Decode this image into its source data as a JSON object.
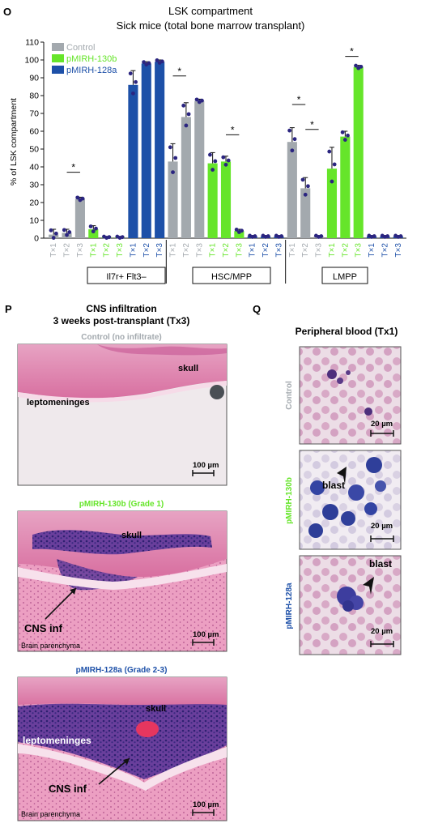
{
  "panel_o": {
    "letter": "O",
    "title_line1": "LSK compartment",
    "title_line2": "Sick mice (total bone marrow transplant)",
    "ylabel": "% of LSK compartment",
    "legend": [
      {
        "label": "Control",
        "color": "#a3a9ae"
      },
      {
        "label": "pMIRH-130b",
        "color": "#66e52a"
      },
      {
        "label": "pMIRH-128a",
        "color": "#1d50a8"
      }
    ],
    "groups": [
      "Il7r+ Flt3–",
      "HSC/MPP",
      "LMPP"
    ]
  },
  "chart_data": {
    "type": "bar",
    "ylabel": "% of LSK compartment",
    "ylim": [
      0,
      110
    ],
    "yticks": [
      0,
      10,
      20,
      30,
      40,
      50,
      60,
      70,
      80,
      90,
      100,
      110
    ],
    "categories": [
      "Tx1",
      "Tx2",
      "Tx3",
      "Tx1",
      "Tx2",
      "Tx3",
      "Tx1",
      "Tx2",
      "Tx3",
      "Tx1",
      "Tx2",
      "Tx3",
      "Tx1",
      "Tx2",
      "Tx3",
      "Tx1",
      "Tx2",
      "Tx3",
      "Tx1",
      "Tx2",
      "Tx3",
      "Tx1",
      "Tx2",
      "Tx3",
      "Tx1",
      "Tx2",
      "Tx3"
    ],
    "colors": [
      "#a3a9ae",
      "#a3a9ae",
      "#a3a9ae",
      "#66e52a",
      "#66e52a",
      "#66e52a",
      "#1d50a8",
      "#1d50a8",
      "#1d50a8",
      "#a3a9ae",
      "#a3a9ae",
      "#a3a9ae",
      "#66e52a",
      "#66e52a",
      "#66e52a",
      "#1d50a8",
      "#1d50a8",
      "#1d50a8",
      "#a3a9ae",
      "#a3a9ae",
      "#a3a9ae",
      "#66e52a",
      "#66e52a",
      "#66e52a",
      "#1d50a8",
      "#1d50a8",
      "#1d50a8"
    ],
    "values": [
      2,
      3,
      22,
      5,
      0.5,
      0.5,
      86,
      98,
      99,
      43,
      68,
      77,
      42,
      43,
      4,
      1,
      1,
      1,
      54,
      28,
      1,
      39,
      57,
      96,
      1,
      1,
      1
    ],
    "errors": [
      3,
      2,
      1,
      2,
      0.5,
      0.5,
      8,
      1,
      1,
      10,
      8,
      1,
      6,
      3,
      1,
      0.5,
      0.5,
      0.5,
      8,
      6,
      0.5,
      12,
      3,
      1,
      0.5,
      0.5,
      0.5
    ],
    "significance": [
      {
        "from": 1,
        "to": 2,
        "y": 37,
        "label": "*"
      },
      {
        "from": 9,
        "to": 10,
        "y": 91,
        "label": "*"
      },
      {
        "from": 13,
        "to": 14,
        "y": 58,
        "label": "*"
      },
      {
        "from": 18,
        "to": 19,
        "y": 75,
        "label": "*"
      },
      {
        "from": 19,
        "to": 20,
        "y": 61,
        "label": "*"
      },
      {
        "from": 22,
        "to": 23,
        "y": 102,
        "label": "*"
      }
    ]
  },
  "panel_p": {
    "letter": "P",
    "title_line1": "CNS infiltration",
    "title_line2": "3 weeks post-transplant (Tx3)",
    "images": [
      {
        "caption": "Control (no infiltrate)",
        "caption_color": "#a3a9ae",
        "labels": [
          "leptomeninges",
          "skull"
        ],
        "scale": "100 µm"
      },
      {
        "caption": "pMIRH-130b (Grade 1)",
        "caption_color": "#66e52a",
        "labels": [
          "skull",
          "CNS inf",
          "Brain parenchyma"
        ],
        "scale": "100 µm"
      },
      {
        "caption": "pMIRH-128a (Grade 2-3)",
        "caption_color": "#1d50a8",
        "labels": [
          "skull",
          "leptomeninges",
          "CNS inf",
          "Brain parenchyma"
        ],
        "scale": "100 µm"
      }
    ]
  },
  "panel_q": {
    "letter": "Q",
    "title": "Peripheral blood (Tx1)",
    "images": [
      {
        "side_label": "Control",
        "side_color": "#a3a9ae",
        "scale": "20 µm",
        "annotation": ""
      },
      {
        "side_label": "pMIRH-130b",
        "side_color": "#66e52a",
        "scale": "20 µm",
        "annotation": "blast"
      },
      {
        "side_label": "pMIRH-128a",
        "side_color": "#1d50a8",
        "scale": "20 µm",
        "annotation": "blast"
      }
    ]
  }
}
